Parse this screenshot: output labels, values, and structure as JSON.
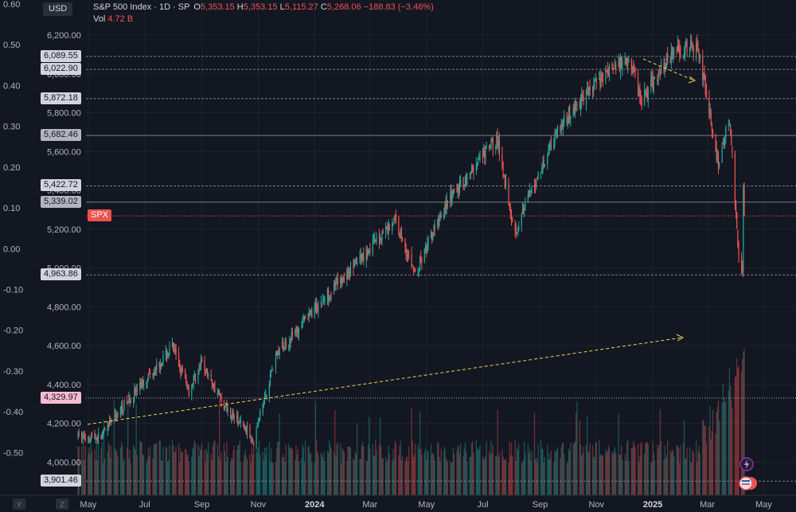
{
  "currency_button": "USD",
  "legend": {
    "symbol": "S&P 500 Index · 1D · SP",
    "open_label": "O",
    "open": "5,353.15",
    "high_label": "H",
    "high": "5,353.15",
    "low_label": "L",
    "low": "5,115.27",
    "close_label": "C",
    "close": "5,268.06",
    "change": "−188.83 (−3.46%)",
    "vol_label": "Vol",
    "vol_value": "4.72 B"
  },
  "left_axis_ticks": [
    "0.60",
    "0.50",
    "0.40",
    "0.30",
    "0.20",
    "0.10",
    "0.00",
    "-0.10",
    "-0.20",
    "-0.30",
    "-0.40",
    "-0.50"
  ],
  "price_axis_ticks": [
    "6,200.00",
    "6,000.00",
    "5,800.00",
    "5,600.00",
    "5,400.00",
    "5,200.00",
    "5,000.00",
    "4,800.00",
    "4,600.00",
    "4,400.00",
    "4,200.00",
    "4,000.00"
  ],
  "price_labels": [
    {
      "text": "6,089.55",
      "value": 6089.55,
      "kind": "light"
    },
    {
      "text": "6,022.90",
      "value": 6022.9,
      "kind": "light"
    },
    {
      "text": "5,872.18",
      "value": 5872.18,
      "kind": "light"
    },
    {
      "text": "5,682.46",
      "value": 5682.46,
      "kind": "gray"
    },
    {
      "text": "5,422.72",
      "value": 5422.72,
      "kind": "light"
    },
    {
      "text": "5,339.02",
      "value": 5339.02,
      "kind": "gray"
    },
    {
      "text": "SPX",
      "value": 5268.06,
      "kind": "red"
    },
    {
      "text": "4,963.86",
      "value": 4963.86,
      "kind": "light"
    },
    {
      "text": "4,329.97",
      "value": 4329.97,
      "kind": "pink"
    },
    {
      "text": "3,901.46",
      "value": 3901.46,
      "kind": "light"
    }
  ],
  "time_axis": [
    "May",
    "Jul",
    "Sep",
    "Nov",
    "2024",
    "Mar",
    "May",
    "Jul",
    "Sep",
    "Nov",
    "2025",
    "Mar",
    "May"
  ],
  "axis_corner_left": "Y",
  "axis_corner_right": "Z",
  "colors": {
    "up": "#26a69a",
    "down": "#ef5350",
    "bg": "#131722",
    "grid": "#1e222d"
  },
  "chart_data": {
    "type": "candlestick",
    "y_axis_range": [
      3850,
      6260
    ],
    "x_range_months": [
      "2023-04",
      "2025-05"
    ],
    "anchors": [
      [
        "2023-04-20",
        4130
      ],
      [
        "2023-05-15",
        4130
      ],
      [
        "2023-06-10",
        4300
      ],
      [
        "2023-07-31",
        4590
      ],
      [
        "2023-08-18",
        4370
      ],
      [
        "2023-09-01",
        4510
      ],
      [
        "2023-09-25",
        4290
      ],
      [
        "2023-10-27",
        4120
      ],
      [
        "2023-11-20",
        4550
      ],
      [
        "2023-12-29",
        4770
      ],
      [
        "2024-03-28",
        5250
      ],
      [
        "2024-04-19",
        4967
      ],
      [
        "2024-05-21",
        5320
      ],
      [
        "2024-07-16",
        5667
      ],
      [
        "2024-08-05",
        5186
      ],
      [
        "2024-09-19",
        5713
      ],
      [
        "2024-11-08",
        5995
      ],
      [
        "2024-12-06",
        6090
      ],
      [
        "2024-12-20",
        5870
      ],
      [
        "2025-01-23",
        6119
      ],
      [
        "2025-02-19",
        6144
      ],
      [
        "2025-03-13",
        5521
      ],
      [
        "2025-03-25",
        5776
      ],
      [
        "2025-04-04",
        5074
      ],
      [
        "2025-04-08",
        4983
      ],
      [
        "2025-04-09",
        5457
      ],
      [
        "2025-04-10",
        5268
      ]
    ]
  }
}
